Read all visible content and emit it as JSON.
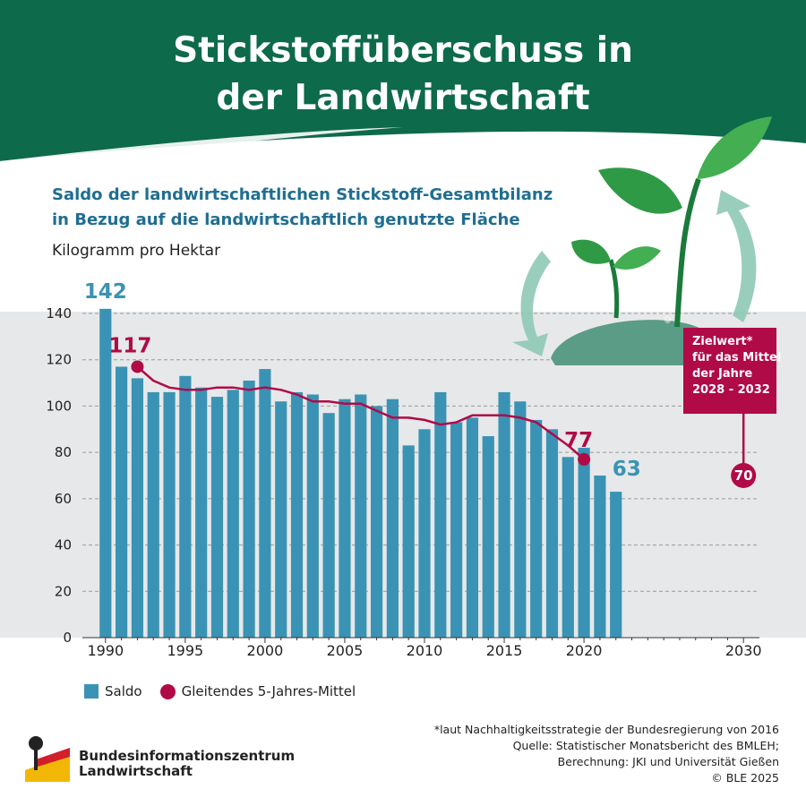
{
  "title_line1": "Stickstoffüberschuss in",
  "title_line2": "der Landwirtschaft",
  "subtitle_line1": "Saldo der landwirtschaftlichen Stickstoff-Gesamtbilanz",
  "subtitle_line2": "in Bezug auf die landwirtschaftlich genutzte Fläche",
  "unit": "Kilogramm pro Hektar",
  "target_box": {
    "line1": "Zielwert*",
    "line2": "für das Mittel",
    "line3": "der Jahre",
    "line4": "2028 - 2032"
  },
  "legend": {
    "bar": "Saldo",
    "line": "Gleitendes 5-Jahres-Mittel"
  },
  "footnote": {
    "line1": "*laut Nachhaltigkeitsstrategie der Bundesregierung von 2016",
    "line2": "Quelle: Statistischer Monatsbericht des BMLEH;",
    "line3": "Berechnung: JKI und Universität Gießen",
    "line4": "© BLE 2025"
  },
  "org": {
    "line1": "Bundesinformationszentrum",
    "line2": "Landwirtschaft"
  },
  "copyright_small": "© BLE",
  "colors": {
    "header_green": "#0d6a4b",
    "bar": "#3a93b4",
    "line": "#b00a47",
    "plot_bg": "#e7e8e9"
  },
  "chart_data": {
    "type": "bar",
    "x": [
      1990,
      1991,
      1992,
      1993,
      1994,
      1995,
      1996,
      1997,
      1998,
      1999,
      2000,
      2001,
      2002,
      2003,
      2004,
      2005,
      2006,
      2007,
      2008,
      2009,
      2010,
      2011,
      2012,
      2013,
      2014,
      2015,
      2016,
      2017,
      2018,
      2019,
      2020,
      2021,
      2022
    ],
    "series": [
      {
        "name": "Saldo",
        "type": "bar",
        "values": [
          142,
          117,
          112,
          106,
          106,
          113,
          108,
          104,
          107,
          111,
          116,
          102,
          106,
          105,
          97,
          103,
          105,
          100,
          103,
          83,
          90,
          106,
          93,
          95,
          87,
          106,
          102,
          94,
          90,
          78,
          82,
          70,
          63
        ]
      },
      {
        "name": "Gleitendes 5-Jahres-Mittel",
        "type": "line",
        "x": [
          1992,
          1993,
          1994,
          1995,
          1996,
          1997,
          1998,
          1999,
          2000,
          2001,
          2002,
          2003,
          2004,
          2005,
          2006,
          2007,
          2008,
          2009,
          2010,
          2011,
          2012,
          2013,
          2014,
          2015,
          2016,
          2017,
          2018,
          2019,
          2020
        ],
        "values": [
          117,
          111,
          108,
          107,
          107,
          108,
          108,
          107,
          108,
          107,
          105,
          102,
          102,
          101,
          101,
          98,
          95,
          95,
          94,
          92,
          93,
          96,
          96,
          96,
          95,
          93,
          88,
          83,
          77
        ]
      }
    ],
    "data_labels": [
      {
        "x": 1990,
        "value": "142",
        "series": "Saldo"
      },
      {
        "x": 1992,
        "value": "117",
        "series": "Gleitendes 5-Jahres-Mittel"
      },
      {
        "x": 2020,
        "value": "77",
        "series": "Gleitendes 5-Jahres-Mittel"
      },
      {
        "x": 2022,
        "value": "63",
        "series": "Saldo"
      }
    ],
    "target": {
      "x": 2030,
      "value": 70,
      "label": "70"
    },
    "xlim": [
      1989,
      2031
    ],
    "ylim": [
      0,
      145
    ],
    "x_ticks": [
      1990,
      1995,
      2000,
      2005,
      2010,
      2015,
      2020,
      2030
    ],
    "y_ticks": [
      0,
      20,
      40,
      60,
      80,
      100,
      120,
      140
    ],
    "grid": "horizontal dashed",
    "legend_position": "bottom-left"
  }
}
